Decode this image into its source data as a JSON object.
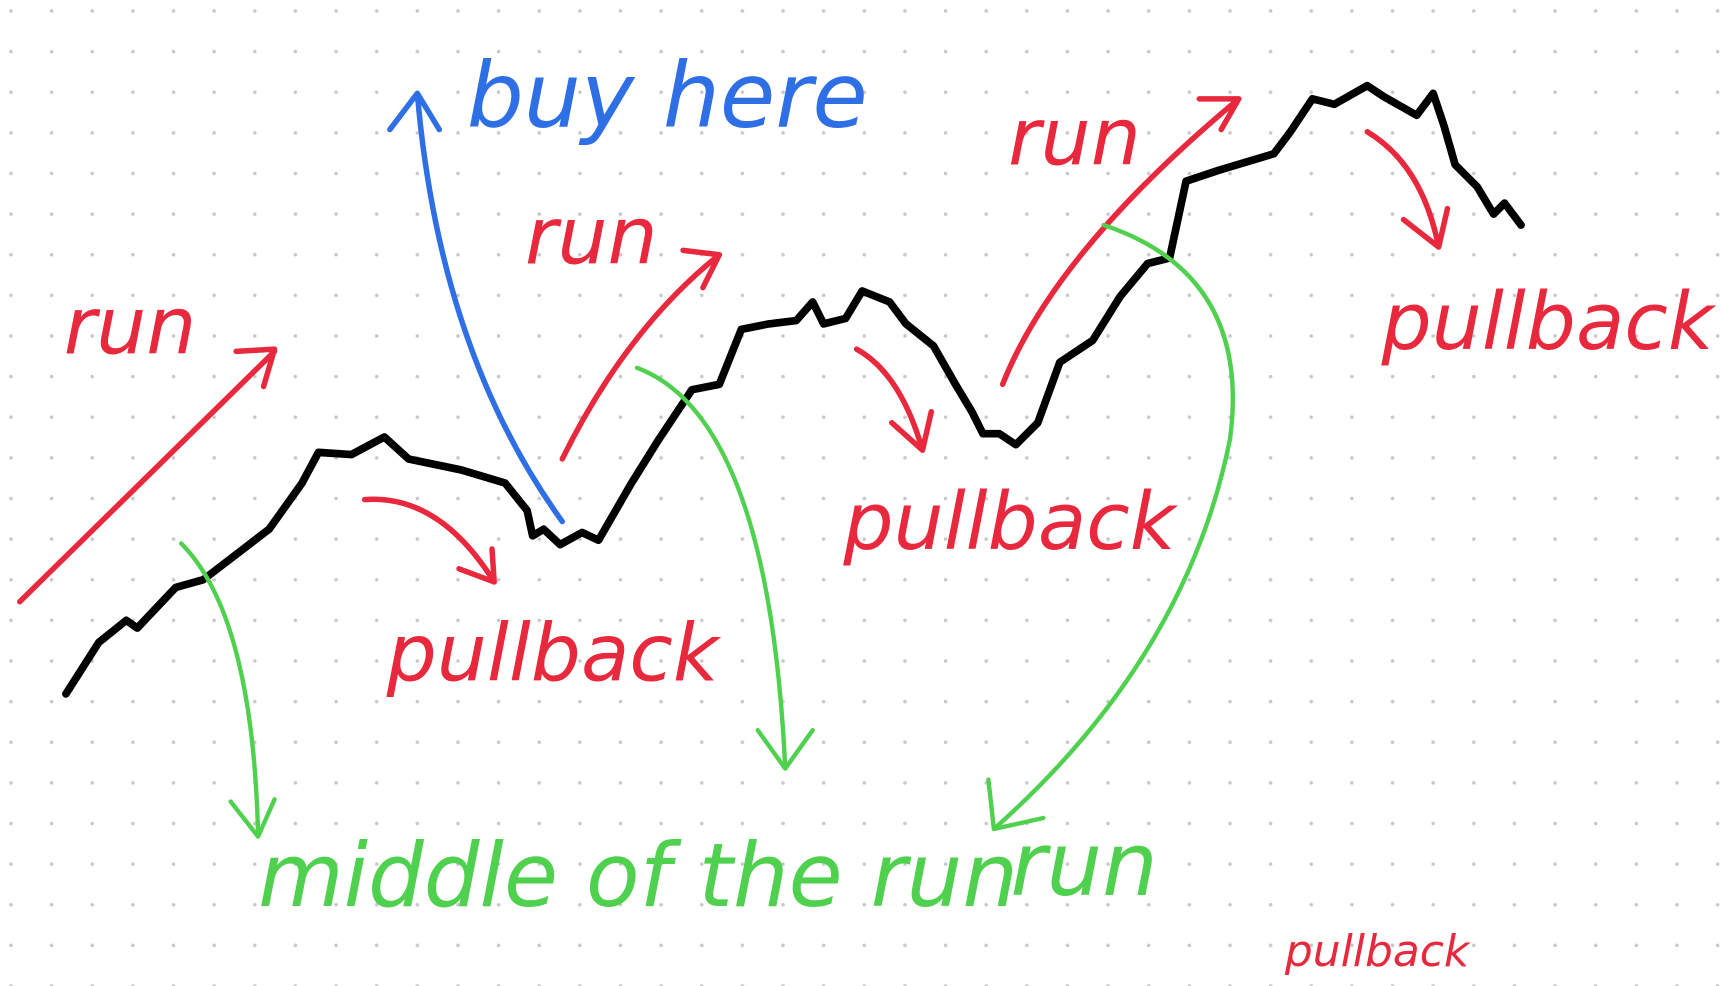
{
  "annotations": {
    "runs": [
      "run",
      "run",
      "run",
      "run"
    ],
    "pullbacks": [
      "pullback",
      "pullback",
      "pullback",
      "pullback"
    ],
    "buy_signal": "buy here",
    "middle_label": "middle of the run"
  }
}
